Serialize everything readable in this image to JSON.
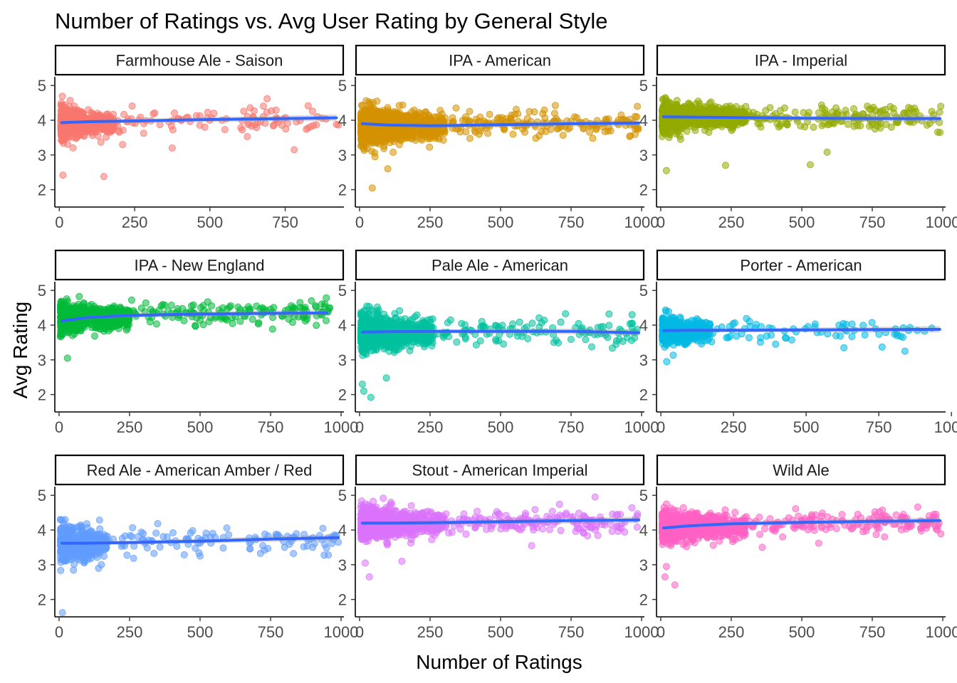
{
  "chart_data": {
    "type": "scatter",
    "title": "Number of Ratings vs. Avg User Rating by General Style",
    "xlabel": "Number of Ratings",
    "ylabel": "Avg Rating",
    "grid": false,
    "legend": "none",
    "y_ticks": [
      2,
      3,
      4,
      5
    ],
    "trend_color": "#3366ff",
    "panels": [
      {
        "name": "Farmhouse Ale - Saison",
        "color": "#f8766d",
        "xlim": [
          -15,
          945
        ],
        "ylim": [
          1.5,
          5.25
        ],
        "x_ticks": [
          0,
          250,
          500,
          750
        ],
        "x_tick_labels": [
          "0",
          "250",
          "500",
          "750"
        ],
        "cluster": {
          "n": 420,
          "x_max": 180,
          "y_mean": 3.92,
          "y_sd": 0.24,
          "y_min": 3.05,
          "y_max": 4.72
        },
        "sparse": {
          "n": 95,
          "x_min": 180,
          "x_max": 930,
          "y_mean": 4.0,
          "y_sd": 0.17
        },
        "outliers": [
          [
            12,
            2.42
          ],
          [
            148,
            2.38
          ],
          [
            780,
            3.15
          ],
          [
            375,
            3.2
          ],
          [
            210,
            3.3
          ],
          [
            690,
            4.62
          ]
        ],
        "trend": [
          [
            8,
            3.93
          ],
          [
            100,
            3.96
          ],
          [
            250,
            3.98
          ],
          [
            500,
            4.02
          ],
          [
            750,
            4.05
          ],
          [
            920,
            4.07
          ]
        ]
      },
      {
        "name": "IPA - American",
        "color": "#d39200",
        "xlim": [
          -15,
          1010
        ],
        "ylim": [
          1.5,
          5.25
        ],
        "x_ticks": [
          0,
          250,
          500,
          750,
          1000
        ],
        "x_tick_labels": [
          "0",
          "250",
          "500",
          "750",
          "1000"
        ],
        "cluster": {
          "n": 900,
          "x_max": 300,
          "y_mean": 3.82,
          "y_sd": 0.3,
          "y_min": 2.55,
          "y_max": 4.6
        },
        "sparse": {
          "n": 170,
          "x_min": 300,
          "x_max": 990,
          "y_mean": 3.9,
          "y_sd": 0.18
        },
        "outliers": [
          [
            45,
            2.05
          ],
          [
            100,
            2.6
          ],
          [
            985,
            4.4
          ],
          [
            960,
            3.55
          ]
        ],
        "trend": [
          [
            10,
            3.9
          ],
          [
            100,
            3.86
          ],
          [
            250,
            3.84
          ],
          [
            500,
            3.87
          ],
          [
            750,
            3.9
          ],
          [
            990,
            3.92
          ]
        ]
      },
      {
        "name": "IPA - Imperial",
        "color": "#93aa00",
        "xlim": [
          -15,
          1010
        ],
        "ylim": [
          1.5,
          5.25
        ],
        "x_ticks": [
          0,
          250,
          500,
          750,
          1000
        ],
        "x_tick_labels": [
          "0",
          "250",
          "500",
          "750",
          "1000"
        ],
        "cluster": {
          "n": 800,
          "x_max": 300,
          "y_mean": 4.1,
          "y_sd": 0.22,
          "y_min": 2.9,
          "y_max": 4.65
        },
        "sparse": {
          "n": 160,
          "x_min": 300,
          "x_max": 995,
          "y_mean": 4.05,
          "y_sd": 0.17
        },
        "outliers": [
          [
            20,
            2.55
          ],
          [
            530,
            2.72
          ],
          [
            590,
            3.08
          ],
          [
            230,
            2.7
          ],
          [
            990,
            3.65
          ]
        ],
        "trend": [
          [
            10,
            4.1
          ],
          [
            100,
            4.09
          ],
          [
            250,
            4.08
          ],
          [
            500,
            4.06
          ],
          [
            750,
            4.05
          ],
          [
            990,
            4.05
          ]
        ]
      },
      {
        "name": "IPA - New England",
        "color": "#00ba38",
        "xlim": [
          -15,
          1010
        ],
        "ylim": [
          1.5,
          5.25
        ],
        "x_ticks": [
          0,
          250,
          500,
          750,
          1000
        ],
        "x_tick_labels": [
          "0",
          "250",
          "500",
          "750",
          "1000"
        ],
        "cluster": {
          "n": 650,
          "x_max": 250,
          "y_mean": 4.2,
          "y_sd": 0.22,
          "y_min": 3.2,
          "y_max": 4.85
        },
        "sparse": {
          "n": 150,
          "x_min": 250,
          "x_max": 960,
          "y_mean": 4.32,
          "y_sd": 0.15
        },
        "outliers": [
          [
            30,
            3.05
          ],
          [
            960,
            4.5
          ],
          [
            895,
            4.7
          ]
        ],
        "trend": [
          [
            10,
            4.12
          ],
          [
            100,
            4.22
          ],
          [
            250,
            4.28
          ],
          [
            500,
            4.32
          ],
          [
            750,
            4.34
          ],
          [
            950,
            4.35
          ]
        ]
      },
      {
        "name": "Pale Ale - American",
        "color": "#00c19f",
        "xlim": [
          -15,
          1010
        ],
        "ylim": [
          1.5,
          5.25
        ],
        "x_ticks": [
          0,
          250,
          500,
          750,
          1000
        ],
        "x_tick_labels": [
          "0",
          "250",
          "500",
          "750",
          "1000"
        ],
        "cluster": {
          "n": 750,
          "x_max": 260,
          "y_mean": 3.78,
          "y_sd": 0.3,
          "y_min": 2.4,
          "y_max": 4.55
        },
        "sparse": {
          "n": 120,
          "x_min": 260,
          "x_max": 995,
          "y_mean": 3.8,
          "y_sd": 0.2
        },
        "outliers": [
          [
            15,
            2.1
          ],
          [
            40,
            1.92
          ],
          [
            95,
            2.48
          ],
          [
            10,
            2.3
          ],
          [
            910,
            3.45
          ]
        ],
        "trend": [
          [
            10,
            3.8
          ],
          [
            100,
            3.81
          ],
          [
            250,
            3.82
          ],
          [
            500,
            3.82
          ],
          [
            750,
            3.82
          ],
          [
            990,
            3.78
          ]
        ]
      },
      {
        "name": "Porter - American",
        "color": "#00b9e3",
        "xlim": [
          -15,
          980
        ],
        "ylim": [
          1.5,
          5.25
        ],
        "x_ticks": [
          0,
          250,
          500,
          750,
          1000
        ],
        "x_tick_labels": [
          "0",
          "250",
          "500",
          "750",
          "1000"
        ],
        "cluster": {
          "n": 420,
          "x_max": 170,
          "y_mean": 3.84,
          "y_sd": 0.22,
          "y_min": 2.85,
          "y_max": 4.55
        },
        "sparse": {
          "n": 70,
          "x_min": 170,
          "x_max": 960,
          "y_mean": 3.85,
          "y_sd": 0.18
        },
        "outliers": [
          [
            20,
            2.95
          ],
          [
            630,
            3.35
          ],
          [
            840,
            3.25
          ],
          [
            395,
            3.45
          ]
        ],
        "trend": [
          [
            10,
            3.84
          ],
          [
            100,
            3.85
          ],
          [
            250,
            3.85
          ],
          [
            500,
            3.86
          ],
          [
            750,
            3.87
          ],
          [
            960,
            3.88
          ]
        ]
      },
      {
        "name": "Red Ale - American Amber / Red",
        "color": "#619cff",
        "xlim": [
          -15,
          1010
        ],
        "ylim": [
          1.5,
          5.25
        ],
        "x_ticks": [
          0,
          250,
          500,
          750,
          1000
        ],
        "x_tick_labels": [
          "0",
          "250",
          "500",
          "750",
          "1000"
        ],
        "cluster": {
          "n": 460,
          "x_max": 170,
          "y_mean": 3.6,
          "y_sd": 0.28,
          "y_min": 2.6,
          "y_max": 4.3
        },
        "sparse": {
          "n": 110,
          "x_min": 170,
          "x_max": 995,
          "y_mean": 3.7,
          "y_sd": 0.18
        },
        "outliers": [
          [
            12,
            1.62
          ],
          [
            150,
            3.0
          ],
          [
            140,
            2.9
          ],
          [
            500,
            3.25
          ],
          [
            990,
            3.65
          ]
        ],
        "trend": [
          [
            10,
            3.62
          ],
          [
            100,
            3.62
          ],
          [
            250,
            3.64
          ],
          [
            500,
            3.68
          ],
          [
            750,
            3.74
          ],
          [
            990,
            3.78
          ]
        ]
      },
      {
        "name": "Stout - American Imperial",
        "color": "#db72fb",
        "xlim": [
          -15,
          1010
        ],
        "ylim": [
          1.5,
          5.25
        ],
        "x_ticks": [
          0,
          250,
          500,
          750,
          1000
        ],
        "x_tick_labels": [
          "0",
          "250",
          "500",
          "750",
          "1000"
        ],
        "cluster": {
          "n": 850,
          "x_max": 300,
          "y_mean": 4.2,
          "y_sd": 0.24,
          "y_min": 3.25,
          "y_max": 4.95
        },
        "sparse": {
          "n": 160,
          "x_min": 300,
          "x_max": 995,
          "y_mean": 4.25,
          "y_sd": 0.16
        },
        "outliers": [
          [
            35,
            2.65
          ],
          [
            20,
            3.05
          ],
          [
            150,
            3.1
          ],
          [
            835,
            4.95
          ],
          [
            610,
            3.55
          ]
        ],
        "trend": [
          [
            10,
            4.2
          ],
          [
            100,
            4.2
          ],
          [
            250,
            4.21
          ],
          [
            500,
            4.24
          ],
          [
            750,
            4.27
          ],
          [
            990,
            4.29
          ]
        ]
      },
      {
        "name": "Wild Ale",
        "color": "#ff61c3",
        "xlim": [
          -15,
          1010
        ],
        "ylim": [
          1.5,
          5.25
        ],
        "x_ticks": [
          0,
          250,
          500,
          750,
          1000
        ],
        "x_tick_labels": [
          "0",
          "250",
          "500",
          "750",
          "1000"
        ],
        "cluster": {
          "n": 750,
          "x_max": 300,
          "y_mean": 4.1,
          "y_sd": 0.24,
          "y_min": 3.2,
          "y_max": 4.75
        },
        "sparse": {
          "n": 160,
          "x_min": 300,
          "x_max": 995,
          "y_mean": 4.22,
          "y_sd": 0.16
        },
        "outliers": [
          [
            50,
            2.42
          ],
          [
            15,
            2.65
          ],
          [
            20,
            2.95
          ],
          [
            360,
            3.5
          ],
          [
            560,
            3.62
          ]
        ],
        "trend": [
          [
            10,
            4.06
          ],
          [
            100,
            4.12
          ],
          [
            250,
            4.18
          ],
          [
            500,
            4.22
          ],
          [
            750,
            4.25
          ],
          [
            990,
            4.27
          ]
        ]
      }
    ]
  }
}
